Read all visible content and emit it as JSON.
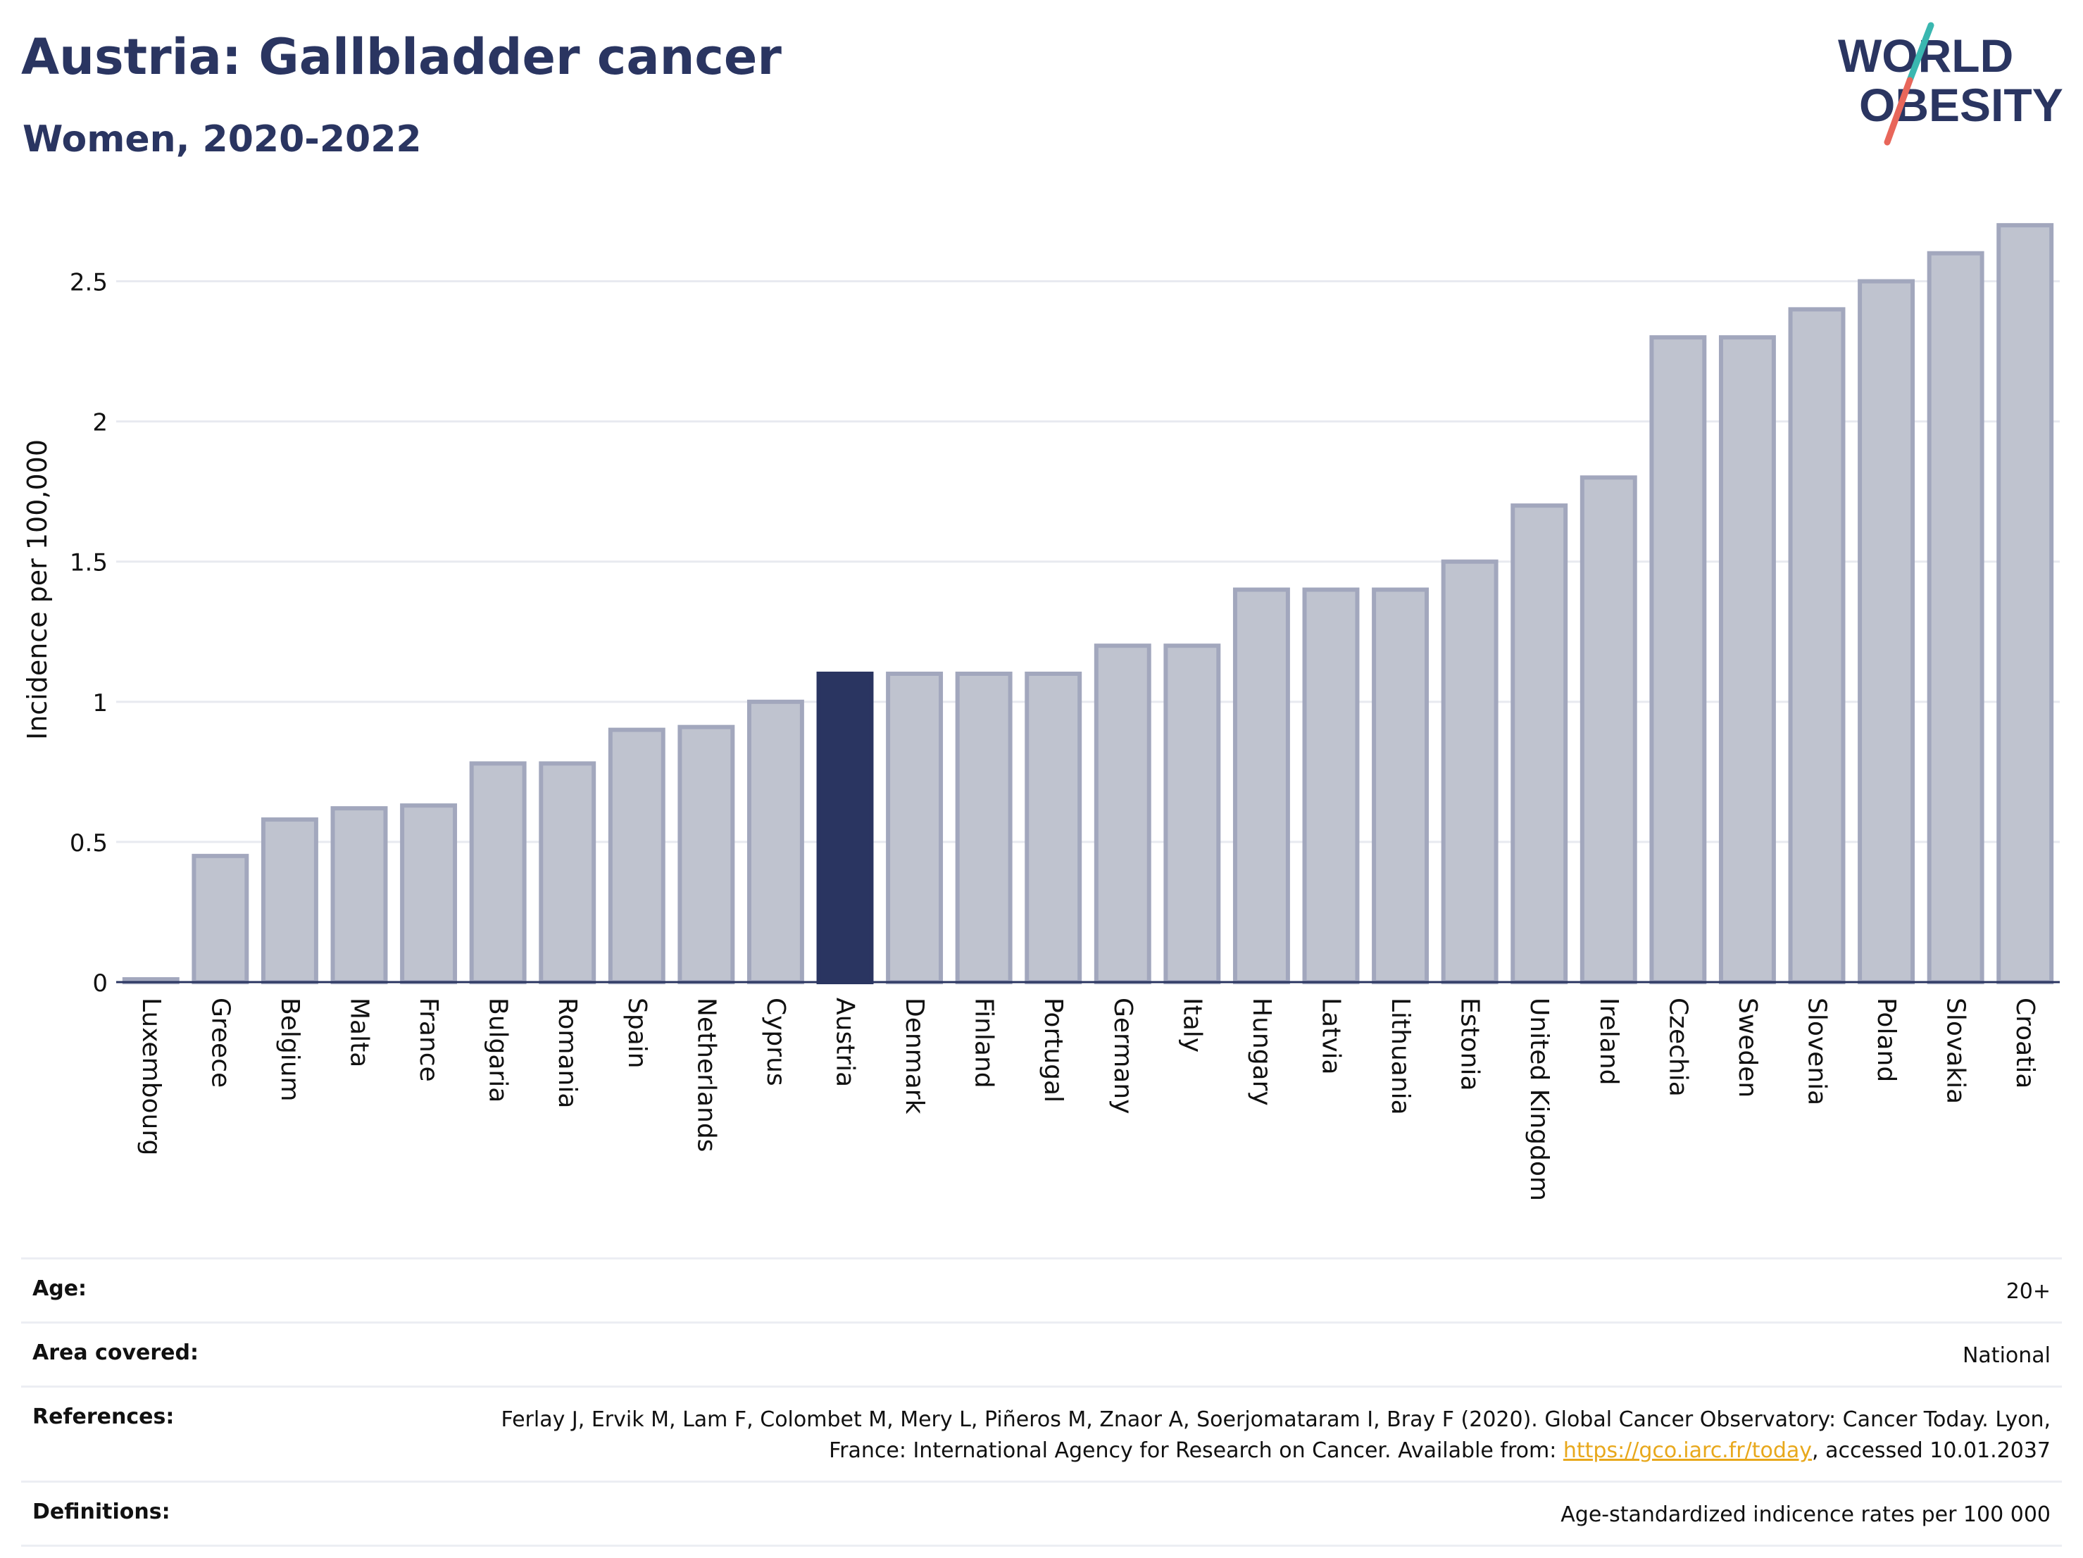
{
  "header": {
    "title": "Austria: Gallbladder cancer",
    "subtitle": "Women, 2020-2022"
  },
  "logo": {
    "line1": "WORLD",
    "line2": "OBESITY",
    "accent_teal": "#3ab7b0",
    "accent_red": "#e8665a"
  },
  "chart_data": {
    "type": "bar",
    "ylabel": "Incidence per 100,000",
    "ylim": [
      0,
      2.75
    ],
    "yticks": [
      0,
      0.5,
      1,
      1.5,
      2,
      2.5
    ],
    "ytick_labels": [
      "0",
      "0.5",
      "1",
      "1.5",
      "2",
      "2.5"
    ],
    "grid": true,
    "highlight": "Austria",
    "colors": {
      "bar": "#bfc3cf",
      "bar_border": "#a2a7bd",
      "highlight": "#2a3561",
      "grid": "#e8eaf0",
      "axis": "#2a3561"
    },
    "categories": [
      "Luxembourg",
      "Greece",
      "Belgium",
      "Malta",
      "France",
      "Bulgaria",
      "Romania",
      "Spain",
      "Netherlands",
      "Cyprus",
      "Austria",
      "Denmark",
      "Finland",
      "Portugal",
      "Germany",
      "Italy",
      "Hungary",
      "Latvia",
      "Lithuania",
      "Estonia",
      "United Kingdom",
      "Ireland",
      "Czechia",
      "Sweden",
      "Slovenia",
      "Poland",
      "Slovakia",
      "Croatia"
    ],
    "values": [
      0.01,
      0.45,
      0.58,
      0.62,
      0.63,
      0.78,
      0.78,
      0.9,
      0.91,
      1.0,
      1.1,
      1.1,
      1.1,
      1.1,
      1.2,
      1.2,
      1.4,
      1.4,
      1.4,
      1.5,
      1.7,
      1.8,
      2.3,
      2.3,
      2.4,
      2.5,
      2.6,
      2.7
    ]
  },
  "meta": {
    "age": {
      "label": "Age:",
      "value": "20+"
    },
    "area": {
      "label": "Area covered:",
      "value": "National"
    },
    "references": {
      "label": "References:",
      "text_before": "Ferlay J, Ervik M, Lam F, Colombet M, Mery L, Piñeros M, Znaor A, Soerjomataram I, Bray F (2020). Global Cancer Observatory: Cancer Today. Lyon, France: International Agency for Research on Cancer. Available from: ",
      "link": "https://gco.iarc.fr/today",
      "text_after": ", accessed 10.01.2037"
    },
    "definitions": {
      "label": "Definitions:",
      "value": "Age-standardized indicence rates per 100 000"
    }
  }
}
